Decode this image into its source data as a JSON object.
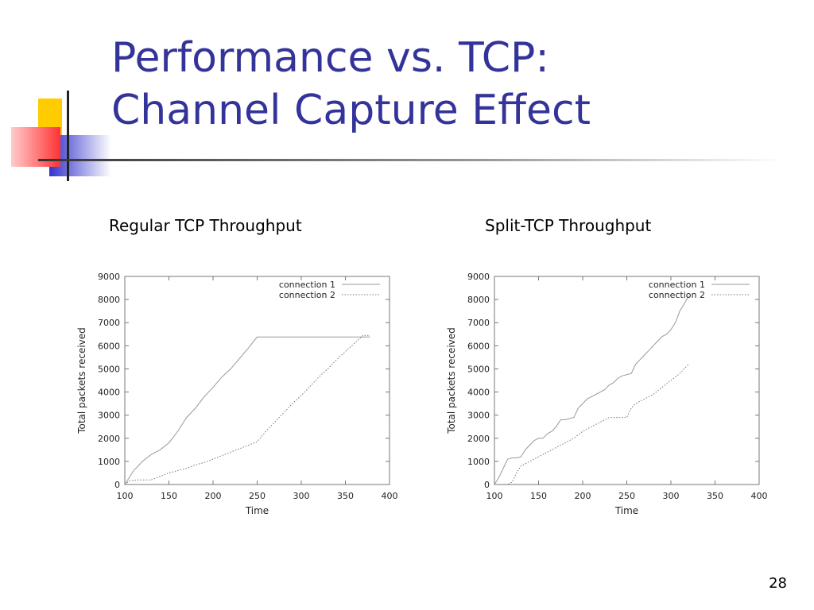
{
  "slide": {
    "title_line1": "Performance vs. TCP:",
    "title_line2": "Channel Capture Effect",
    "page_number": "28",
    "colors": {
      "title": "#333399",
      "accent_yellow": "#ffcc00",
      "accent_red": "#ff3333",
      "accent_blue": "#3333cc"
    }
  },
  "captions": {
    "left": "Regular TCP Throughput",
    "right": "Split-TCP Throughput"
  },
  "chart_data": [
    {
      "type": "line",
      "title": "Regular TCP Throughput",
      "xlabel": "Time",
      "ylabel": "Total packets received",
      "xlim": [
        100,
        400
      ],
      "ylim": [
        0,
        9000
      ],
      "xticks": [
        100,
        150,
        200,
        250,
        300,
        350,
        400
      ],
      "yticks": [
        0,
        1000,
        2000,
        3000,
        4000,
        5000,
        6000,
        7000,
        8000,
        9000
      ],
      "legend": "top-right",
      "grid": false,
      "series": [
        {
          "name": "connection 1",
          "style": "solid",
          "x": [
            100,
            110,
            120,
            130,
            140,
            150,
            160,
            170,
            180,
            190,
            200,
            210,
            220,
            230,
            240,
            250,
            300,
            350,
            378
          ],
          "y": [
            0,
            600,
            1000,
            1300,
            1500,
            1800,
            2300,
            2900,
            3300,
            3800,
            4200,
            4650,
            5000,
            5450,
            5900,
            6380,
            6380,
            6380,
            6380
          ]
        },
        {
          "name": "connection 2",
          "style": "dotted",
          "x": [
            100,
            105,
            115,
            130,
            140,
            150,
            160,
            170,
            180,
            190,
            200,
            210,
            220,
            230,
            240,
            250,
            260,
            270,
            280,
            290,
            300,
            310,
            320,
            330,
            340,
            350,
            360,
            370,
            378
          ],
          "y": [
            0,
            150,
            200,
            200,
            350,
            500,
            600,
            700,
            850,
            950,
            1100,
            1250,
            1400,
            1550,
            1700,
            1850,
            2300,
            2700,
            3100,
            3500,
            3850,
            4250,
            4650,
            5000,
            5400,
            5750,
            6100,
            6450,
            6450
          ]
        }
      ]
    },
    {
      "type": "line",
      "title": "Split-TCP Throughput",
      "xlabel": "Time",
      "ylabel": "Total packets received",
      "xlim": [
        100,
        400
      ],
      "ylim": [
        0,
        9000
      ],
      "xticks": [
        100,
        150,
        200,
        250,
        300,
        350,
        400
      ],
      "yticks": [
        0,
        1000,
        2000,
        3000,
        4000,
        5000,
        6000,
        7000,
        8000,
        9000
      ],
      "legend": "top-right",
      "grid": false,
      "series": [
        {
          "name": "connection 1",
          "style": "solid",
          "x": [
            100,
            105,
            110,
            115,
            120,
            125,
            130,
            135,
            140,
            145,
            150,
            155,
            160,
            165,
            170,
            175,
            180,
            185,
            190,
            195,
            200,
            205,
            210,
            215,
            220,
            225,
            230,
            235,
            240,
            245,
            250,
            255,
            260,
            265,
            270,
            275,
            280,
            285,
            290,
            295,
            300,
            305,
            310,
            315,
            320
          ],
          "y": [
            0,
            300,
            700,
            1100,
            1150,
            1150,
            1200,
            1500,
            1700,
            1900,
            2000,
            2000,
            2200,
            2300,
            2500,
            2800,
            2800,
            2850,
            2900,
            3300,
            3500,
            3700,
            3800,
            3900,
            4000,
            4100,
            4300,
            4400,
            4600,
            4700,
            4750,
            4800,
            5200,
            5400,
            5600,
            5800,
            6000,
            6200,
            6400,
            6500,
            6700,
            7000,
            7500,
            7800,
            8150
          ]
        },
        {
          "name": "connection 2",
          "style": "dotted",
          "x": [
            100,
            110,
            115,
            120,
            125,
            130,
            140,
            150,
            160,
            170,
            180,
            190,
            200,
            210,
            220,
            230,
            240,
            250,
            255,
            260,
            270,
            280,
            290,
            300,
            310,
            320
          ],
          "y": [
            0,
            0,
            0,
            100,
            500,
            800,
            1000,
            1200,
            1400,
            1600,
            1800,
            2000,
            2300,
            2500,
            2700,
            2900,
            2900,
            2900,
            3300,
            3500,
            3700,
            3900,
            4200,
            4500,
            4800,
            5200
          ]
        }
      ]
    }
  ]
}
